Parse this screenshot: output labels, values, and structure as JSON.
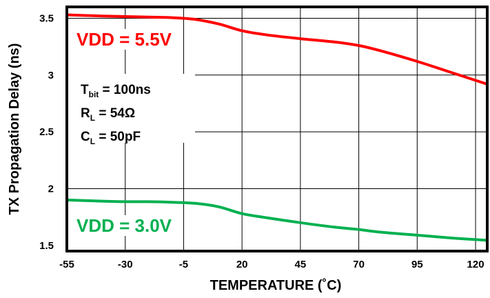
{
  "chart_data": {
    "type": "line",
    "title": "",
    "xlabel": "TEMPERATURE (˚C)",
    "ylabel": "TX Propagation Delay (ns)",
    "xlim": [
      -55,
      125
    ],
    "ylim": [
      1.45,
      3.6
    ],
    "xticks": [
      -55,
      -30,
      -5,
      20,
      45,
      70,
      95,
      120
    ],
    "xtick_labels": [
      "-55",
      "-30",
      "-5",
      "20",
      "45",
      "70",
      "95",
      "120"
    ],
    "yticks": [
      1.5,
      2,
      2.5,
      3,
      3.5
    ],
    "ytick_labels": [
      "1.5",
      "2",
      "2.5",
      "3",
      "3.5"
    ],
    "grid": true,
    "series": [
      {
        "name": "VDD = 5.5V",
        "color": "#ff0000",
        "x": [
          -55,
          -40,
          -30,
          -20,
          -10,
          0,
          10,
          20,
          30,
          45,
          60,
          70,
          80,
          95,
          110,
          125
        ],
        "y": [
          3.53,
          3.52,
          3.515,
          3.51,
          3.505,
          3.49,
          3.45,
          3.39,
          3.355,
          3.32,
          3.29,
          3.26,
          3.21,
          3.12,
          3.02,
          2.92
        ]
      },
      {
        "name": "VDD = 3.0V",
        "color": "#00b050",
        "x": [
          -55,
          -40,
          -30,
          -20,
          -10,
          0,
          10,
          20,
          30,
          45,
          60,
          70,
          80,
          95,
          110,
          125
        ],
        "y": [
          1.9,
          1.89,
          1.885,
          1.885,
          1.88,
          1.87,
          1.84,
          1.78,
          1.745,
          1.7,
          1.66,
          1.64,
          1.615,
          1.59,
          1.565,
          1.545
        ]
      }
    ],
    "annotations": {
      "conditions": [
        {
          "main": "T",
          "sub": "bit",
          "rest": " = 100ns"
        },
        {
          "main": "R",
          "sub": "L",
          "rest": " = 54Ω"
        },
        {
          "main": "C",
          "sub": "L",
          "rest": " = 50pF"
        }
      ]
    }
  }
}
